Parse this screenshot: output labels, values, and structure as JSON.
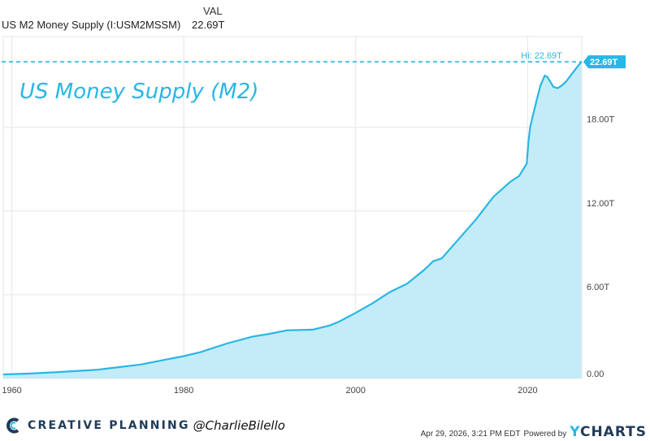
{
  "legend": {
    "header": "VAL",
    "series_name": "US M2 Money Supply (I:USM2MSSM)",
    "value": "22.69T"
  },
  "branding": {
    "company": "CREATIVE PLANNING",
    "handle": "@CharlieBilello",
    "timestamp": "Apr 29, 2026, 3:21 PM EDT",
    "powered_by": "Powered by",
    "provider": "CHARTS",
    "provider_initial": "Y",
    "accent_color": "#29b6e6",
    "brand_color": "#1f3b57"
  },
  "chart_data": {
    "type": "area",
    "title": "US Money Supply (M2)",
    "xlabel": "",
    "ylabel": "",
    "x_ticks": [
      1960,
      1980,
      2000,
      2020
    ],
    "x_tick_labels": [
      "1960",
      "1980",
      "2000",
      "2020"
    ],
    "y_ticks": [
      0,
      6,
      12,
      18
    ],
    "y_tick_labels": [
      "0.00",
      "6.00T",
      "12.00T",
      "18.00T"
    ],
    "xlim": [
      1959.0,
      2026.3
    ],
    "ylim": [
      0,
      24.5
    ],
    "grid": true,
    "line_color": "#29b6e6",
    "fill_color": "#c3ecf8",
    "high": {
      "label": "Hi: 22.69T",
      "value": 22.69
    },
    "last_value_label": "22.69T",
    "series": [
      {
        "x": [
          1959.0,
          1962,
          1965,
          1968,
          1970,
          1972,
          1975,
          1978,
          1980,
          1982,
          1985,
          1988,
          1990,
          1992,
          1995,
          1997,
          1998,
          2000,
          2002,
          2004,
          2006,
          2008,
          2009,
          2010,
          2012,
          2014,
          2016,
          2018,
          2019,
          2019.9,
          2020.1,
          2020.3,
          2020.6,
          2021,
          2021.5,
          2022.0,
          2022.3,
          2022.7,
          2023.0,
          2023.5,
          2024.0,
          2024.5,
          2025.0,
          2025.5,
          2026.0,
          2026.25
        ],
        "values": [
          0.29,
          0.35,
          0.44,
          0.55,
          0.63,
          0.78,
          1.0,
          1.36,
          1.6,
          1.9,
          2.5,
          3.0,
          3.2,
          3.45,
          3.5,
          3.8,
          4.05,
          4.7,
          5.4,
          6.2,
          6.8,
          7.8,
          8.4,
          8.6,
          10.0,
          11.4,
          13.0,
          14.1,
          14.5,
          15.4,
          17.0,
          18.0,
          18.8,
          19.8,
          21.0,
          21.7,
          21.6,
          21.2,
          20.9,
          20.8,
          21.0,
          21.3,
          21.7,
          22.1,
          22.5,
          22.69
        ]
      }
    ]
  }
}
